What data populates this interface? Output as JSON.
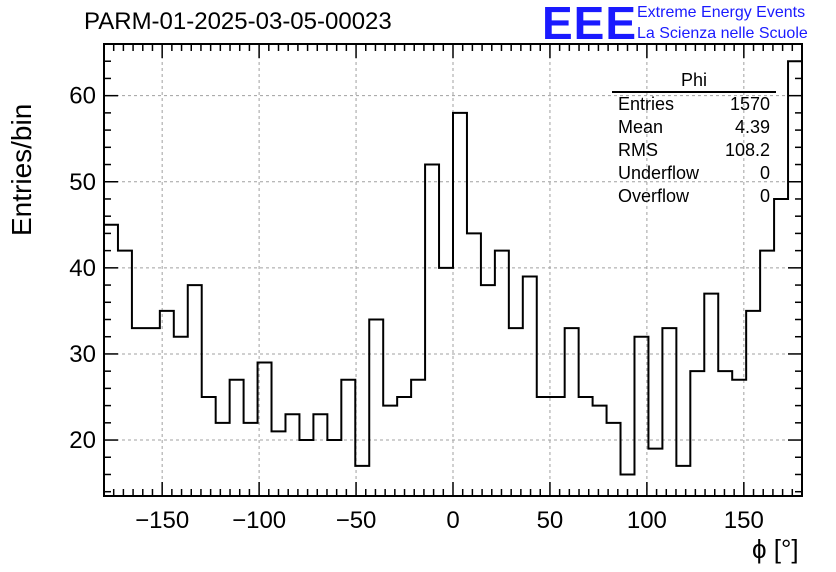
{
  "chart_data": {
    "type": "histogram",
    "title": "PARM-01-2025-03-05-00023",
    "xlabel": "ϕ [°]",
    "ylabel": "Entries/bin",
    "xlim": [
      -180,
      180
    ],
    "ylim": [
      13.5,
      66
    ],
    "bin_width": 7.2,
    "x_ticks": [
      -150,
      -100,
      -50,
      0,
      50,
      100,
      150
    ],
    "x_tick_labels": [
      "−150",
      "−100",
      "−50",
      "0",
      "50",
      "100",
      "150"
    ],
    "y_ticks": [
      20,
      30,
      40,
      50,
      60
    ],
    "y_tick_labels": [
      "20",
      "30",
      "40",
      "50",
      "60"
    ],
    "grid": true,
    "values": [
      45,
      42,
      33,
      33,
      35,
      32,
      38,
      25,
      22,
      27,
      22,
      29,
      21,
      23,
      20,
      23,
      20,
      27,
      17,
      34,
      24,
      25,
      27,
      52,
      40,
      58,
      44,
      38,
      42,
      33,
      39,
      25,
      25,
      33,
      25,
      24,
      22,
      16,
      32,
      19,
      33,
      17,
      28,
      37,
      28,
      27,
      35,
      42,
      48,
      64
    ]
  },
  "stats_box": {
    "header": "Phi",
    "rows": [
      {
        "label": "Entries",
        "value": "1570"
      },
      {
        "label": "Mean",
        "value": "4.39"
      },
      {
        "label": "RMS",
        "value": "108.2"
      },
      {
        "label": "Underflow",
        "value": "0"
      },
      {
        "label": "Overflow",
        "value": "0"
      }
    ]
  },
  "logo": {
    "mark": "EEE",
    "line1": "Extreme Energy Events",
    "line2": "La Scienza nelle Scuole"
  },
  "colors": {
    "logo": "#1a1aff",
    "line": "#000000",
    "grid": "#a0a0a0"
  }
}
